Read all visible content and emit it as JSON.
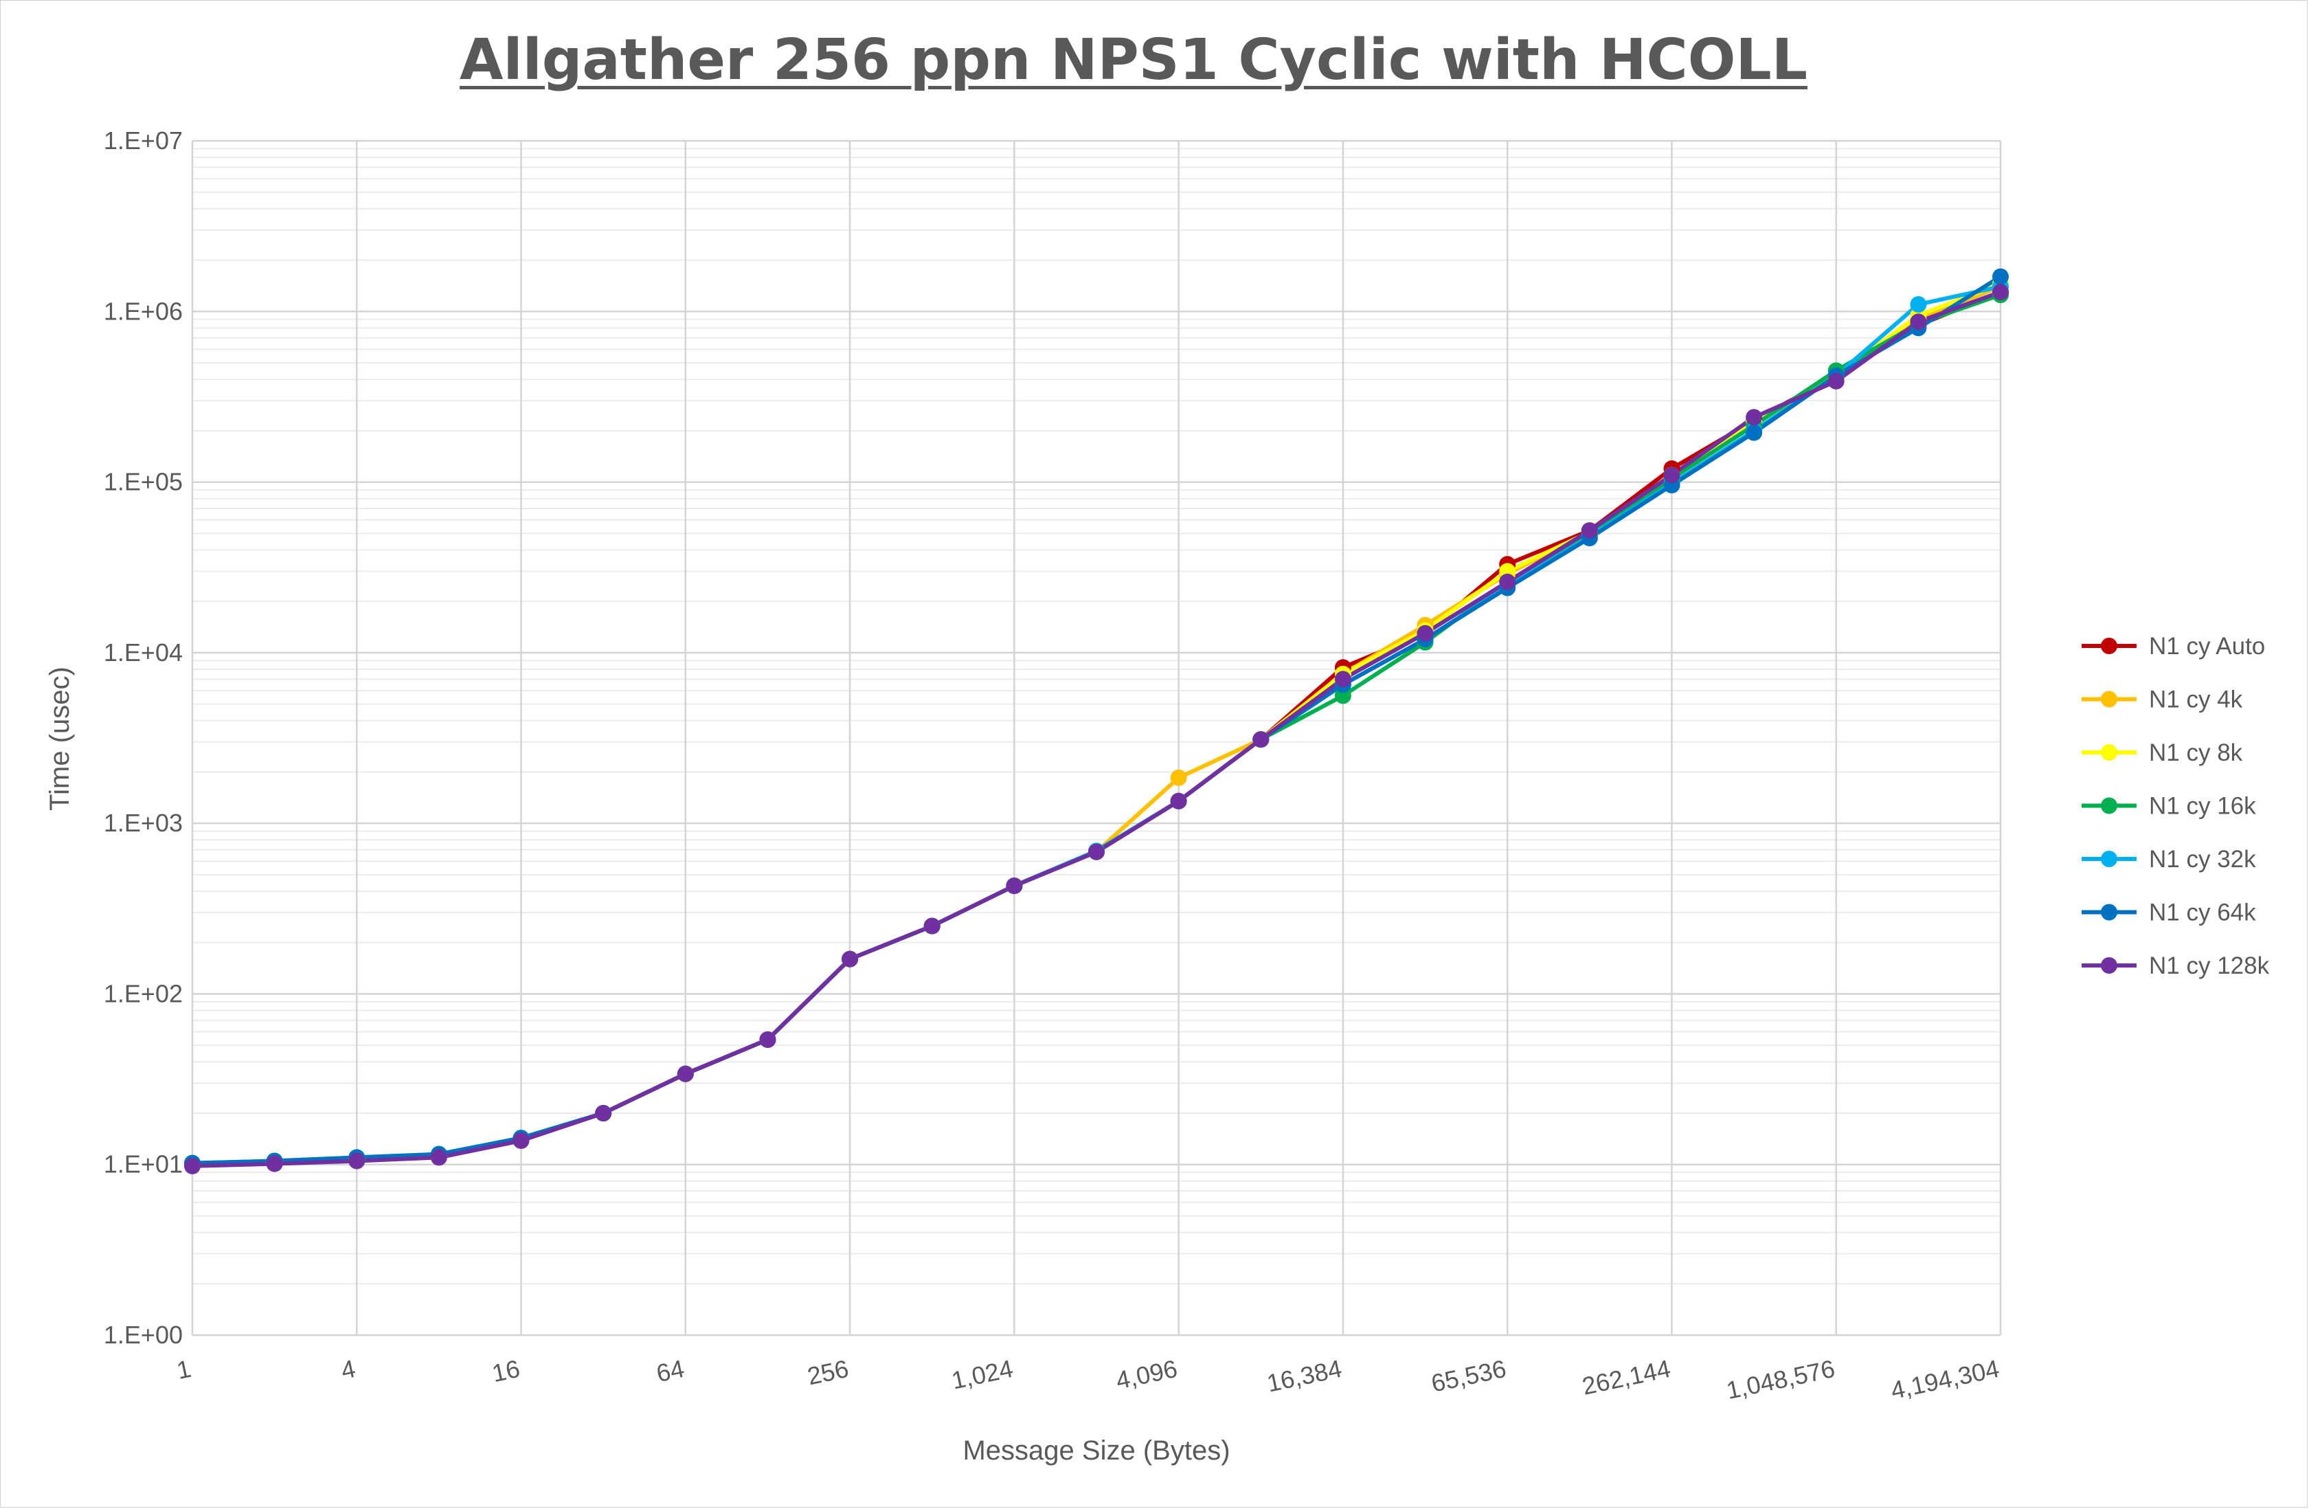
{
  "chart_data": {
    "type": "line",
    "title": "Allgather 256 ppn NPS1 Cyclic with HCOLL",
    "xlabel": "Message Size (Bytes)",
    "ylabel": "Time (usec)",
    "x_scale": "log2",
    "y_scale": "log10",
    "ylim": [
      1,
      10000000
    ],
    "grid": true,
    "legend_position": "right",
    "x": [
      1,
      2,
      4,
      8,
      16,
      32,
      64,
      128,
      256,
      512,
      1024,
      2048,
      4096,
      8192,
      16384,
      32768,
      65536,
      131072,
      262144,
      524288,
      1048576,
      2097152,
      4194304
    ],
    "x_tick_labels": [
      "1",
      "4",
      "16",
      "64",
      "256",
      "1,024",
      "4,096",
      "16,384",
      "65,536",
      "262,144",
      "1,048,576",
      "4,194,304"
    ],
    "x_tick_values": [
      1,
      4,
      16,
      64,
      256,
      1024,
      4096,
      16384,
      65536,
      262144,
      1048576,
      4194304
    ],
    "y_tick_labels": [
      "1.E+00",
      "1.E+01",
      "1.E+02",
      "1.E+03",
      "1.E+04",
      "1.E+05",
      "1.E+06",
      "1.E+07"
    ],
    "y_tick_values": [
      1,
      10,
      100,
      1000,
      10000,
      100000,
      1000000,
      10000000
    ],
    "series": [
      {
        "name": "N1 cy Auto",
        "color": "#C00000",
        "values": [
          10,
          10.3,
          10.7,
          11.2,
          14,
          20,
          34,
          54,
          160,
          250,
          430,
          680,
          1350,
          3100,
          8200,
          13000,
          33000,
          52000,
          120000,
          230000,
          420000,
          830000,
          1300000
        ]
      },
      {
        "name": "N1 cy 4k",
        "color": "#FFC000",
        "values": [
          10,
          10.3,
          10.7,
          11.2,
          14,
          20,
          34,
          54,
          160,
          250,
          430,
          680,
          1850,
          3100,
          7500,
          14500,
          29000,
          51000,
          110000,
          225000,
          400000,
          900000,
          1400000
        ]
      },
      {
        "name": "N1 cy 8k",
        "color": "#FFFF00",
        "values": [
          10,
          10.3,
          10.7,
          11.2,
          14,
          20,
          34,
          54,
          160,
          250,
          430,
          680,
          1350,
          3100,
          7500,
          13500,
          30000,
          51000,
          110000,
          225000,
          420000,
          950000,
          1450000
        ]
      },
      {
        "name": "N1 cy 16k",
        "color": "#00B050",
        "values": [
          10,
          10.3,
          10.7,
          11.2,
          14,
          20,
          34,
          54,
          160,
          250,
          430,
          680,
          1350,
          3100,
          5600,
          11500,
          26000,
          50000,
          105000,
          215000,
          450000,
          850000,
          1250000
        ]
      },
      {
        "name": "N1 cy 32k",
        "color": "#00B0F0",
        "values": [
          10.2,
          10.5,
          11,
          11.5,
          14.3,
          20,
          34,
          54,
          160,
          250,
          430,
          690,
          1350,
          3100,
          6500,
          12000,
          24500,
          48000,
          98000,
          200000,
          420000,
          1100000,
          1400000
        ]
      },
      {
        "name": "N1 cy 64k",
        "color": "#0070C0",
        "values": [
          10.2,
          10.5,
          11,
          11.5,
          14.3,
          20,
          34,
          54,
          160,
          250,
          430,
          680,
          1350,
          3100,
          6500,
          12000,
          24000,
          47000,
          96000,
          195000,
          420000,
          800000,
          1600000
        ]
      },
      {
        "name": "N1 cy 128k",
        "color": "#7030A0",
        "values": [
          9.8,
          10.1,
          10.5,
          11,
          13.8,
          20,
          34,
          54,
          160,
          250,
          430,
          680,
          1350,
          3100,
          7000,
          13000,
          26000,
          52000,
          110000,
          240000,
          390000,
          870000,
          1300000
        ]
      }
    ]
  }
}
